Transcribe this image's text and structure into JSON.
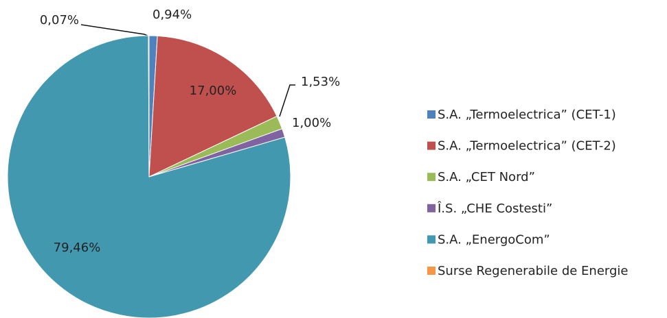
{
  "chart_data": {
    "type": "pie",
    "categories": [
      "S.A. „Termoelectrica” (CET-1)",
      "S.A. „Termoelectrica” (CET-2)",
      "S.A. „CET Nord”",
      "Î.S. „CHE Costesti”",
      "S.A. „EnergoCom”",
      "Surse Regenerabile de Energie"
    ],
    "values": [
      0.94,
      17.0,
      1.53,
      1.0,
      79.46,
      0.07
    ],
    "value_labels": [
      "0,94%",
      "17,00%",
      "1,53%",
      "1,00%",
      "79,46%",
      "0,07%"
    ],
    "colors": [
      "#4f81bd",
      "#c0504d",
      "#9bbb59",
      "#8064a2",
      "#4198af",
      "#f79646"
    ],
    "legend": "right"
  }
}
